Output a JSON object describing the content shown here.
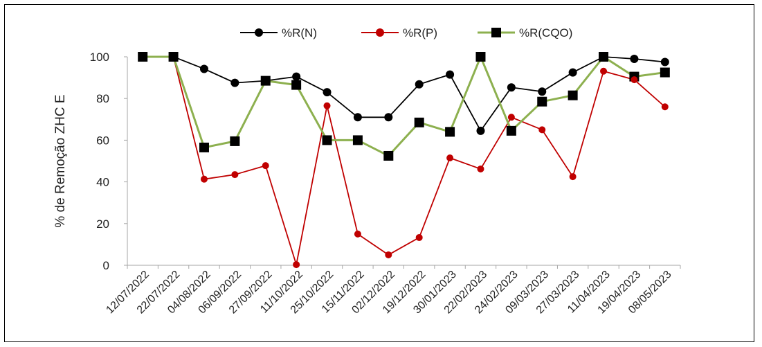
{
  "chart_data": {
    "type": "line",
    "title": "",
    "xlabel": "",
    "ylabel": "% de Remoção ZHC E",
    "ylim": [
      0,
      100
    ],
    "yticks": [
      0,
      20,
      40,
      60,
      80,
      100
    ],
    "grid": false,
    "legend_position": "top",
    "categories": [
      "12/07/2022",
      "22/07/2022",
      "04/08/2022",
      "06/09/2022",
      "27/09/2022",
      "11/10/2022",
      "25/10/2022",
      "15/11/2022",
      "02/12/2022",
      "19/12/2022",
      "30/01/2023",
      "22/02/2023",
      "24/02/2023",
      "09/03/2023",
      "27/03/2023",
      "11/04/2023",
      "19/04/2023",
      "08/05/2023"
    ],
    "series": [
      {
        "name": "%R(N)",
        "color": "#000000",
        "marker": "circle",
        "values": [
          100,
          100,
          94.2,
          87.5,
          88.5,
          90.5,
          83,
          71,
          71,
          86.8,
          91.5,
          64.5,
          85.3,
          83.3,
          92.5,
          100,
          99,
          97.5
        ]
      },
      {
        "name": "%R(P)",
        "color": "#c00000",
        "marker": "circle",
        "values": [
          100,
          100,
          41.3,
          43.5,
          47.8,
          0.3,
          76.5,
          15,
          5,
          13.3,
          51.5,
          46.2,
          71,
          65,
          42.5,
          93.1,
          89,
          76
        ]
      },
      {
        "name": "%R(CQO)",
        "color": "#8db04f",
        "marker": "square",
        "values": [
          100,
          100,
          56.5,
          59.5,
          88.5,
          86.5,
          60,
          60,
          52.5,
          68.5,
          64,
          100,
          64.5,
          78.5,
          81.5,
          100,
          90.5,
          92.5
        ]
      }
    ]
  }
}
